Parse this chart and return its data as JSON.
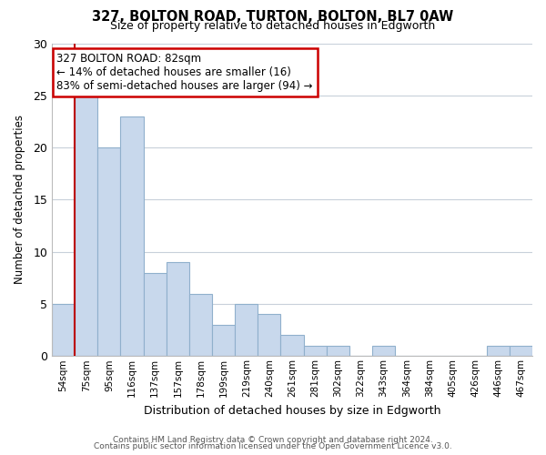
{
  "title": "327, BOLTON ROAD, TURTON, BOLTON, BL7 0AW",
  "subtitle": "Size of property relative to detached houses in Edgworth",
  "xlabel": "Distribution of detached houses by size in Edgworth",
  "ylabel": "Number of detached properties",
  "categories": [
    "54sqm",
    "75sqm",
    "95sqm",
    "116sqm",
    "137sqm",
    "157sqm",
    "178sqm",
    "199sqm",
    "219sqm",
    "240sqm",
    "261sqm",
    "281sqm",
    "302sqm",
    "322sqm",
    "343sqm",
    "364sqm",
    "384sqm",
    "405sqm",
    "426sqm",
    "446sqm",
    "467sqm"
  ],
  "values": [
    5,
    25,
    20,
    23,
    8,
    9,
    6,
    3,
    5,
    4,
    2,
    1,
    1,
    0,
    1,
    0,
    0,
    0,
    0,
    1,
    1
  ],
  "bar_color": "#c8d8ec",
  "bar_edge_color": "#90b0cc",
  "vline_x": 0.5,
  "vline_color": "#bb0000",
  "ylim": [
    0,
    30
  ],
  "yticks": [
    0,
    5,
    10,
    15,
    20,
    25,
    30
  ],
  "annotation_text": "327 BOLTON ROAD: 82sqm\n← 14% of detached houses are smaller (16)\n83% of semi-detached houses are larger (94) →",
  "annotation_box_color": "#ffffff",
  "annotation_box_edge": "#cc0000",
  "footer_line1": "Contains HM Land Registry data © Crown copyright and database right 2024.",
  "footer_line2": "Contains public sector information licensed under the Open Government Licence v3.0.",
  "bg_color": "#ffffff",
  "grid_color": "#c8d0da"
}
